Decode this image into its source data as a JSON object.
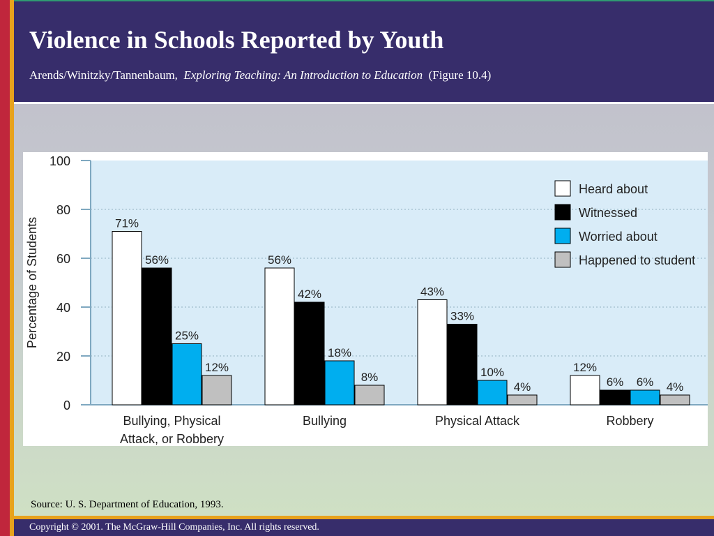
{
  "header": {
    "title": "Violence in Schools Reported by Youth",
    "subtitle_authors": "Arends/Winitzky/Tannenbaum,",
    "subtitle_book": "Exploring Teaching:  An Introduction to Education",
    "subtitle_figure": "(Figure 10.4)"
  },
  "source": "Source: U. S. Department of Education, 1993.",
  "copyright": "Copyright © 2001. The McGraw-Hill Companies, Inc. All rights reserved.",
  "colors": {
    "header_bg": "#372d6b",
    "accent_red": "#c0263c",
    "accent_gold": "#e8a21c",
    "plot_bg": "#d9ecf8"
  },
  "chart_data": {
    "type": "bar",
    "ylabel": "Percentage of Students",
    "ylim": [
      0,
      100
    ],
    "yticks": [
      0,
      20,
      40,
      60,
      80,
      100
    ],
    "grid": true,
    "legend_position": "top-right",
    "categories": [
      [
        "Bullying, Physical",
        "Attack, or Robbery"
      ],
      [
        "Bullying"
      ],
      [
        "Physical Attack"
      ],
      [
        "Robbery"
      ]
    ],
    "series": [
      {
        "name": "Heard about",
        "color": "#ffffff",
        "values": [
          71,
          56,
          43,
          12
        ],
        "labels": [
          "71%",
          "56%",
          "43%",
          "12%"
        ]
      },
      {
        "name": "Witnessed",
        "color": "#000000",
        "values": [
          56,
          42,
          33,
          6
        ],
        "labels": [
          "56%",
          "42%",
          "33%",
          "6%"
        ]
      },
      {
        "name": "Worried about",
        "color": "#00aeef",
        "values": [
          25,
          18,
          10,
          6
        ],
        "labels": [
          "25%",
          "18%",
          "10%",
          "6%"
        ]
      },
      {
        "name": "Happened to student",
        "color": "#c0c0c0",
        "values": [
          12,
          8,
          4,
          4
        ],
        "labels": [
          "12%",
          "8%",
          "4%",
          "4%"
        ]
      }
    ]
  }
}
